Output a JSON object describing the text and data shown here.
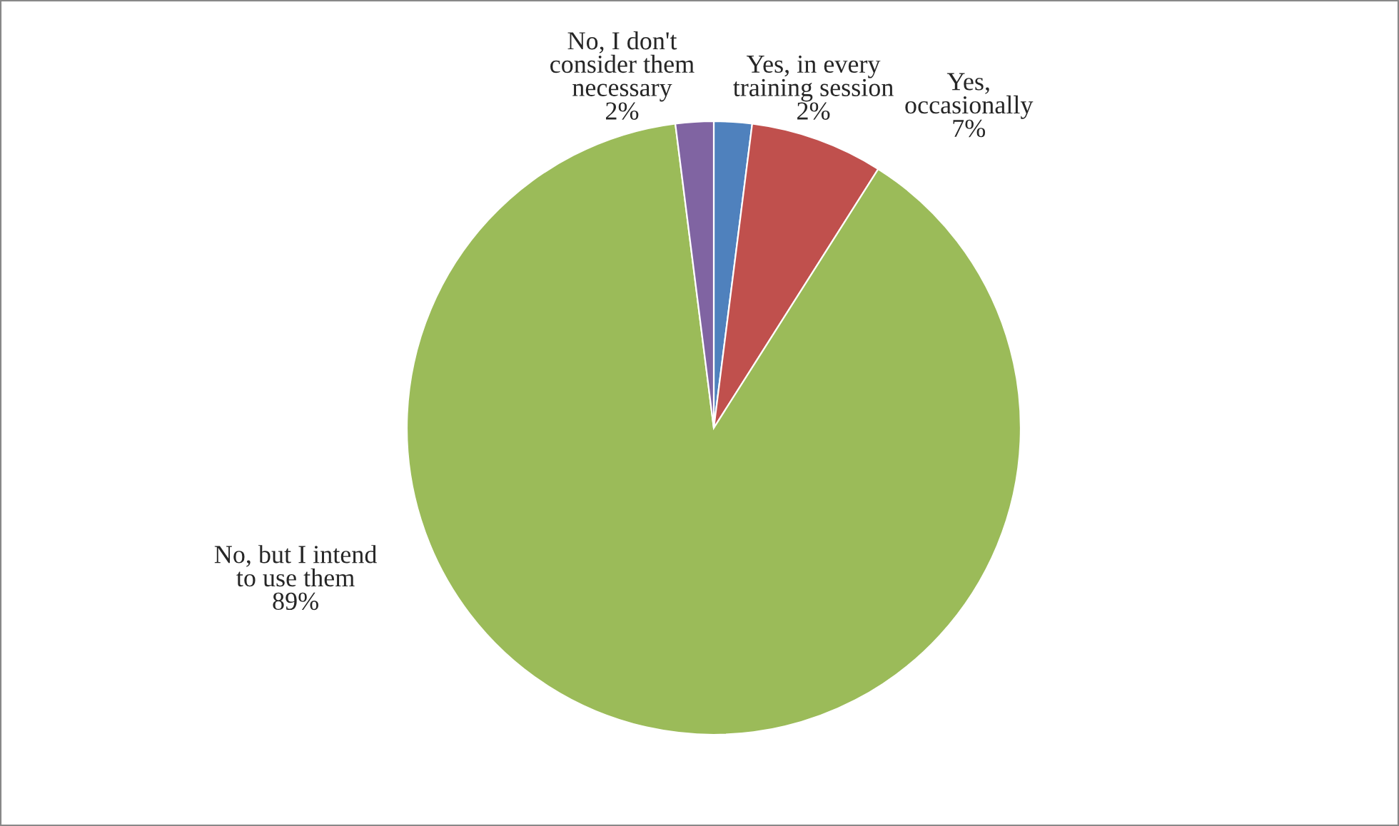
{
  "chart_data": {
    "type": "pie",
    "categories": [
      "Yes, in every\ntraining session",
      "Yes,\noccasionally",
      "No, but I intend\nto use them",
      "No, I don't\nconsider them\nnecessary"
    ],
    "values": [
      2,
      7,
      89,
      2
    ],
    "value_labels": [
      "2%",
      "7%",
      "89%",
      "2%"
    ],
    "colors": [
      "#4f81bd",
      "#c0504d",
      "#9bbb59",
      "#8064a2"
    ]
  }
}
